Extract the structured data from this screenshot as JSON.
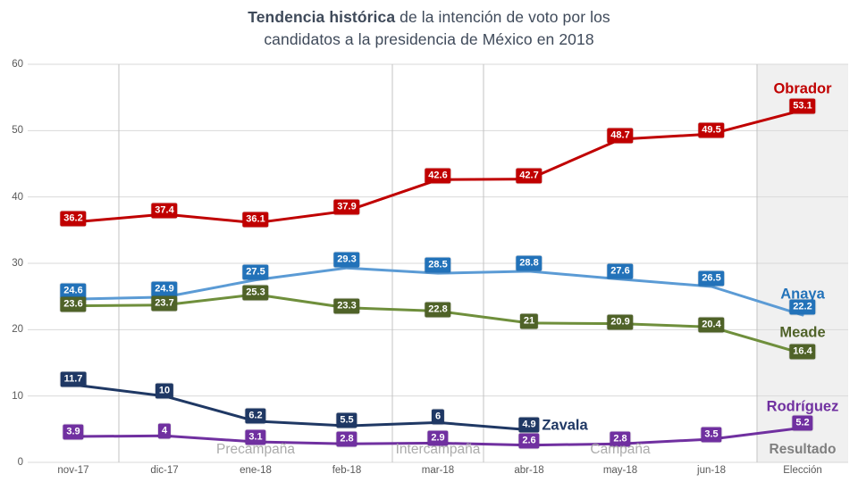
{
  "title": {
    "bold_part": "Tendencia histórica",
    "regular_part": " de la intención de voto por los",
    "line2": "candidatos a la presidencia de México en 2018"
  },
  "chart_data": {
    "type": "line",
    "categories": [
      "nov-17",
      "dic-17",
      "ene-18",
      "feb-18",
      "mar-18",
      "abr-18",
      "may-18",
      "jun-18",
      "Elección"
    ],
    "ylim": [
      0,
      60
    ],
    "yticks": [
      0,
      10,
      20,
      30,
      40,
      50,
      60
    ],
    "grid": true,
    "legend_position": "end-of-line",
    "series": [
      {
        "name": "Obrador",
        "line_color": "#c00000",
        "label_color": "#c00000",
        "values": [
          36.2,
          37.4,
          36.1,
          37.9,
          42.6,
          42.7,
          48.7,
          49.5,
          53.1
        ]
      },
      {
        "name": "Anaya",
        "line_color": "#5b9bd5",
        "label_color": "#2272b9",
        "values": [
          24.6,
          24.9,
          27.5,
          29.3,
          28.5,
          28.8,
          27.6,
          26.5,
          22.2
        ]
      },
      {
        "name": "Meade",
        "line_color": "#6f8f3c",
        "label_color": "#4f6228",
        "values": [
          23.6,
          23.7,
          25.3,
          23.3,
          22.8,
          21,
          20.9,
          20.4,
          16.4
        ]
      },
      {
        "name": "Zavala",
        "line_color": "#1f3864",
        "label_color": "#1f3864",
        "values": [
          11.7,
          10,
          6.2,
          5.5,
          6,
          4.9,
          null,
          null,
          null
        ]
      },
      {
        "name": "Rodríguez",
        "line_color": "#7030a0",
        "label_color": "#7030a0",
        "values": [
          3.9,
          4,
          3.1,
          2.8,
          2.9,
          2.6,
          2.8,
          3.5,
          5.2
        ]
      }
    ],
    "phases": [
      {
        "label": "Precampaña",
        "from": 1,
        "to": 4,
        "strong": false
      },
      {
        "label": "Intercampaña",
        "from": 4,
        "to": 5,
        "strong": false
      },
      {
        "label": "Campaña",
        "from": 5,
        "to": 8,
        "strong": false
      },
      {
        "label": "Resultado",
        "from": 8,
        "to": 9,
        "strong": true
      }
    ],
    "boundary_indices": [
      1,
      4,
      5,
      8
    ],
    "shaded_region": {
      "from": 8,
      "to": 9,
      "color": "#f0f0f0"
    }
  }
}
